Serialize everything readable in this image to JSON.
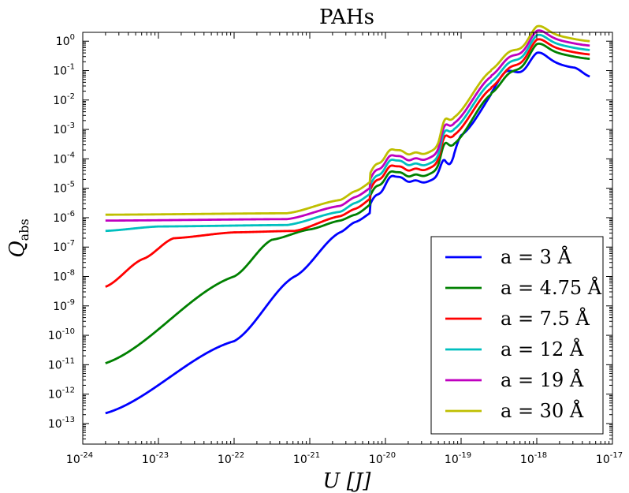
{
  "chart_data": {
    "type": "line",
    "title": "PAHs",
    "xlabel": "U [J]",
    "ylabel": "Q_abs",
    "xscale": "log",
    "yscale": "log",
    "xlim": [
      1e-24,
      1e-17
    ],
    "ylim": [
      2e-14,
      2.0
    ],
    "grid": false,
    "legend_position": "lower-right",
    "x_ticks": [
      {
        "base": "10",
        "exp": "-24"
      },
      {
        "base": "10",
        "exp": "-23"
      },
      {
        "base": "10",
        "exp": "-22"
      },
      {
        "base": "10",
        "exp": "-21"
      },
      {
        "base": "10",
        "exp": "-20"
      },
      {
        "base": "10",
        "exp": "-19"
      },
      {
        "base": "10",
        "exp": "-18"
      },
      {
        "base": "10",
        "exp": "-17"
      }
    ],
    "y_ticks": [
      {
        "base": "10",
        "exp": "0"
      },
      {
        "base": "10",
        "exp": "-1"
      },
      {
        "base": "10",
        "exp": "-2"
      },
      {
        "base": "10",
        "exp": "-3"
      },
      {
        "base": "10",
        "exp": "-4"
      },
      {
        "base": "10",
        "exp": "-5"
      },
      {
        "base": "10",
        "exp": "-6"
      },
      {
        "base": "10",
        "exp": "-7"
      },
      {
        "base": "10",
        "exp": "-8"
      },
      {
        "base": "10",
        "exp": "-9"
      },
      {
        "base": "10",
        "exp": "-10"
      },
      {
        "base": "10",
        "exp": "-11"
      },
      {
        "base": "10",
        "exp": "-12"
      },
      {
        "base": "10",
        "exp": "-13"
      }
    ],
    "series": [
      {
        "name": "a = 3 Å",
        "color": "#0000ff",
        "plateau_log": -6.7,
        "points": [
          [
            -23.7,
            -12.65
          ],
          [
            -22,
            -10.2
          ],
          [
            -21.2,
            -8.0
          ],
          [
            -20.6,
            -6.5
          ],
          [
            -20.4,
            -6.15
          ],
          [
            -20.1,
            -5.7
          ],
          [
            -19.9,
            -5.3
          ],
          [
            -19.3,
            -4.65
          ],
          [
            -19.2,
            -4.6
          ],
          [
            -19.0,
            -3.2
          ],
          [
            -18.4,
            -1.2
          ],
          [
            -18.0,
            -0.6
          ],
          [
            -17.5,
            -0.9
          ],
          [
            -17.3,
            -1.2
          ]
        ]
      },
      {
        "name": "a = 4.75 Å",
        "color": "#008000",
        "plateau_log": -6.5,
        "points": [
          [
            -23.7,
            -10.95
          ],
          [
            -22,
            -8.0
          ],
          [
            -21.5,
            -6.75
          ],
          [
            -21,
            -6.4
          ],
          [
            -20.6,
            -6.1
          ],
          [
            -20.4,
            -5.9
          ],
          [
            -20.1,
            -5.4
          ],
          [
            -19.9,
            -5.15
          ],
          [
            -19.3,
            -4.4
          ],
          [
            -19.1,
            -3.5
          ],
          [
            -18.6,
            -1.8
          ],
          [
            -18.0,
            -0.3
          ],
          [
            -17.3,
            -0.6
          ]
        ]
      },
      {
        "name": "a = 7.5 Å",
        "color": "#ff0000",
        "plateau_log": -6.5,
        "points": [
          [
            -23.7,
            -8.35
          ],
          [
            -23.2,
            -7.4
          ],
          [
            -22.8,
            -6.7
          ],
          [
            -22,
            -6.5
          ],
          [
            -21.2,
            -6.45
          ],
          [
            -20.6,
            -5.95
          ],
          [
            -20.4,
            -5.7
          ],
          [
            -20.1,
            -5.2
          ],
          [
            -19.9,
            -4.95
          ],
          [
            -19.3,
            -4.2
          ],
          [
            -19.1,
            -3.2
          ],
          [
            -18.6,
            -1.6
          ],
          [
            -18.0,
            -0.15
          ],
          [
            -17.3,
            -0.45
          ]
        ]
      },
      {
        "name": "a = 12 Å",
        "color": "#00bfbf",
        "plateau_log": -6.3,
        "points": [
          [
            -23.7,
            -6.45
          ],
          [
            -23,
            -6.3
          ],
          [
            -21.3,
            -6.25
          ],
          [
            -20.6,
            -5.8
          ],
          [
            -20.4,
            -5.5
          ],
          [
            -20.1,
            -5.05
          ],
          [
            -19.9,
            -4.75
          ],
          [
            -19.3,
            -4.05
          ],
          [
            -19.1,
            -3.0
          ],
          [
            -18.6,
            -1.4
          ],
          [
            -18.0,
            0.0
          ],
          [
            -17.3,
            -0.3
          ]
        ]
      },
      {
        "name": "a = 19 Å",
        "color": "#bf00bf",
        "plateau_log": -6.1,
        "points": [
          [
            -23.7,
            -6.1
          ],
          [
            -21.3,
            -6.05
          ],
          [
            -20.6,
            -5.6
          ],
          [
            -20.4,
            -5.3
          ],
          [
            -20.1,
            -4.85
          ],
          [
            -19.9,
            -4.6
          ],
          [
            -19.3,
            -3.85
          ],
          [
            -19.1,
            -2.8
          ],
          [
            -18.6,
            -1.2
          ],
          [
            -18.0,
            0.15
          ],
          [
            -17.3,
            -0.15
          ]
        ]
      },
      {
        "name": "a = 30 Å",
        "color": "#bfbf00",
        "plateau_log": -5.9,
        "points": [
          [
            -23.7,
            -5.9
          ],
          [
            -21.3,
            -5.85
          ],
          [
            -20.6,
            -5.4
          ],
          [
            -20.4,
            -5.1
          ],
          [
            -20.1,
            -4.65
          ],
          [
            -19.9,
            -4.4
          ],
          [
            -19.3,
            -3.65
          ],
          [
            -19.1,
            -2.6
          ],
          [
            -18.6,
            -1.0
          ],
          [
            -18.0,
            0.3
          ],
          [
            -17.3,
            0.0
          ]
        ]
      }
    ]
  }
}
